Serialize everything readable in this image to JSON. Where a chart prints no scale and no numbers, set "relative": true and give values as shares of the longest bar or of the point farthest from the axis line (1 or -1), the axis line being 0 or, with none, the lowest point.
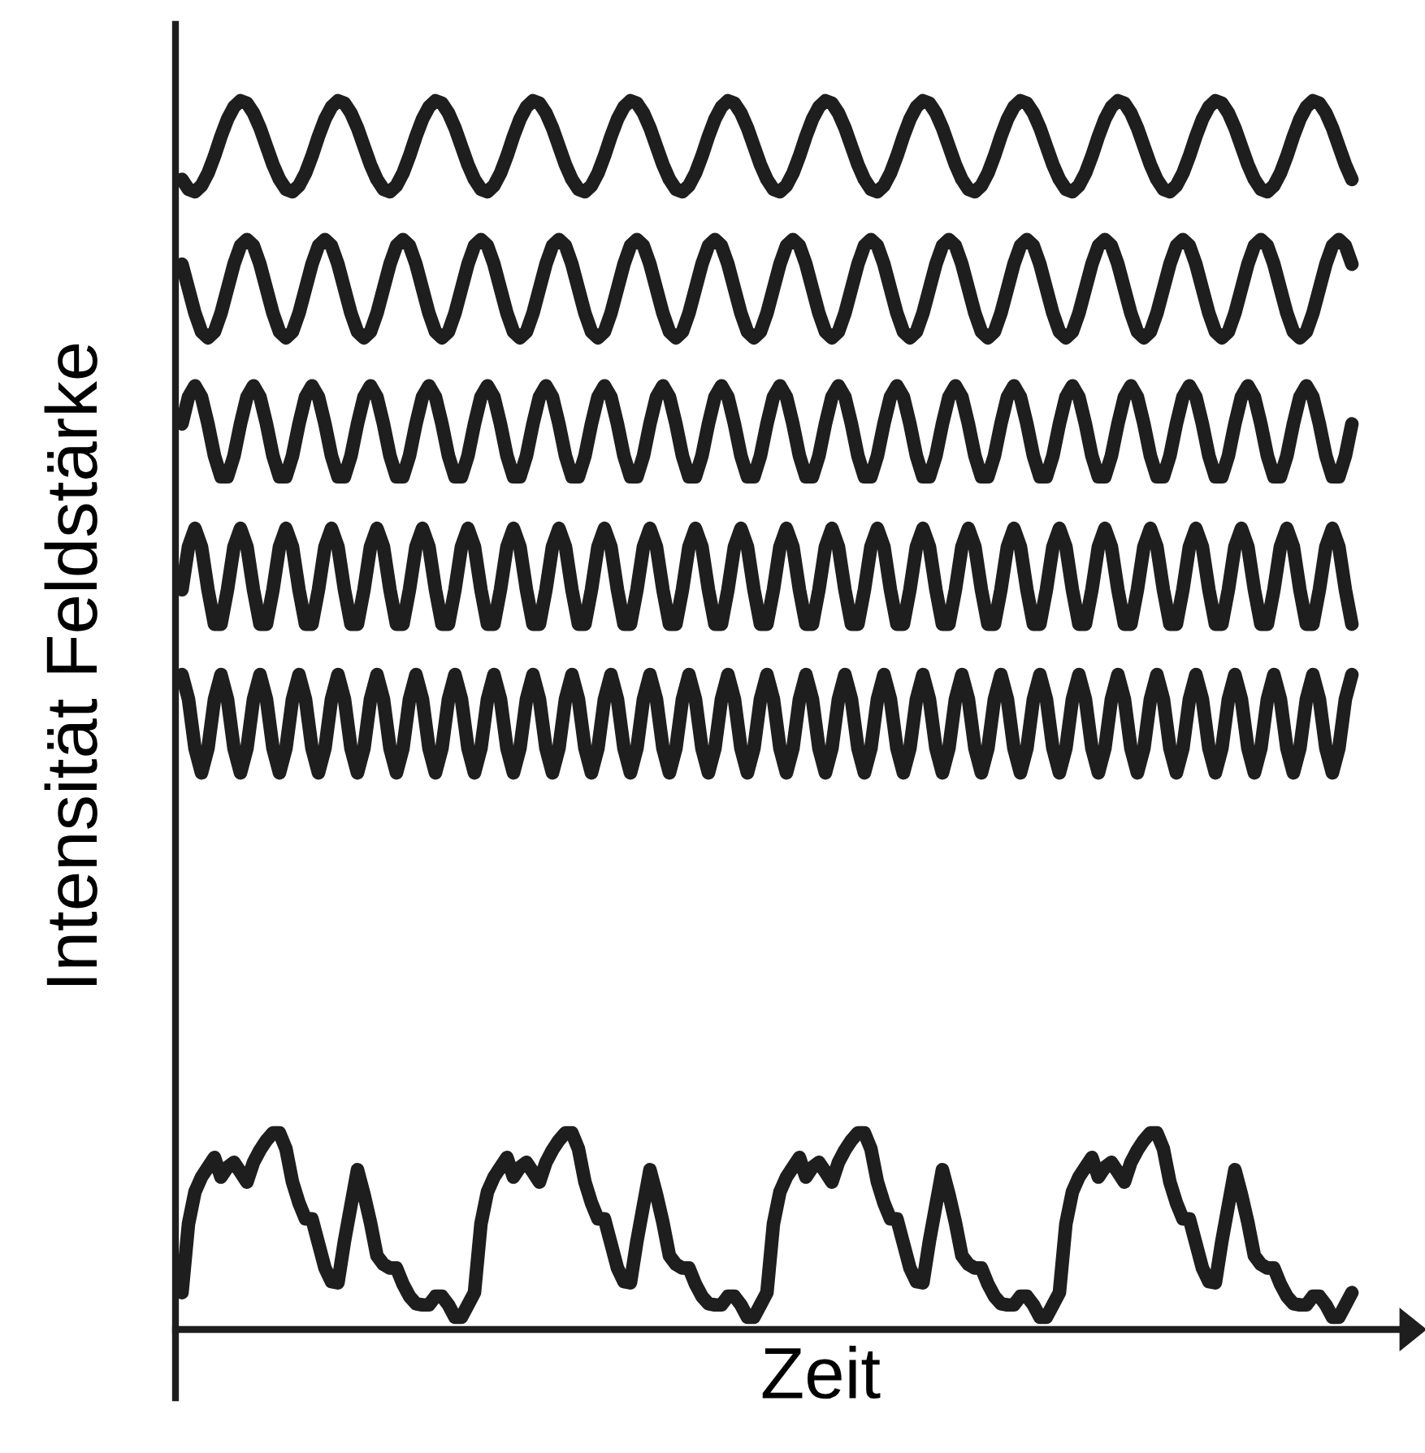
{
  "chart_data": {
    "type": "line",
    "relative": true,
    "xlabel": "Zeit",
    "ylabel": "Intensität Feldstärke",
    "categories": [
      null,
      null,
      null,
      null,
      null,
      null,
      null,
      null,
      null,
      null,
      null,
      null,
      null,
      null,
      null,
      null,
      null,
      null,
      null,
      null,
      null,
      null,
      null,
      null,
      null,
      null,
      null,
      null,
      null,
      null,
      null,
      null,
      null,
      null,
      null,
      null,
      null,
      null,
      null,
      null,
      null,
      null,
      null,
      null,
      null,
      null,
      null,
      null,
      null,
      null,
      null,
      null,
      null,
      null,
      null,
      null,
      null,
      null,
      null,
      null,
      null,
      null,
      null,
      null,
      null,
      null,
      null,
      null,
      null,
      null,
      null,
      null,
      null,
      null,
      null,
      null,
      null,
      null,
      null,
      null,
      null,
      null,
      null,
      null,
      null,
      null,
      null,
      null,
      null,
      null,
      null,
      null,
      null,
      null,
      null,
      null,
      null,
      null,
      null,
      null,
      null,
      null,
      null,
      null,
      null,
      null,
      null,
      null,
      null,
      null,
      null,
      null,
      null,
      null,
      null,
      null,
      null,
      null,
      null,
      null,
      null,
      null,
      null,
      null,
      null,
      null,
      null,
      null,
      null,
      null,
      null,
      null,
      null,
      null,
      null,
      null,
      null,
      null,
      null,
      null,
      null,
      null,
      null,
      null,
      null,
      null,
      null,
      null,
      null,
      null,
      null,
      null,
      null,
      null,
      null,
      null,
      null,
      null,
      null,
      null,
      null,
      null,
      null,
      null,
      null,
      null,
      null,
      null,
      null,
      null,
      null,
      null,
      null,
      null,
      null,
      null,
      null,
      null,
      null,
      null,
      null
    ],
    "series": [
      {
        "color": "#1e1e1e",
        "values": [
          0.936,
          0.928,
          0.926,
          0.931,
          0.941,
          0.955,
          0.971,
          0.985,
          0.995,
          1.0,
          0.998,
          0.99,
          0.978,
          0.963,
          0.948,
          0.936,
          0.928,
          0.926,
          0.931,
          0.941,
          0.955,
          0.971,
          0.985,
          0.995,
          1.0,
          0.998,
          0.99,
          0.978,
          0.963,
          0.948,
          0.936,
          0.928,
          0.926,
          0.931,
          0.941,
          0.955,
          0.971,
          0.985,
          0.995,
          1.0,
          0.998,
          0.99,
          0.978,
          0.963,
          0.948,
          0.936,
          0.928,
          0.926,
          0.931,
          0.941,
          0.955,
          0.971,
          0.985,
          0.995,
          1.0,
          0.998,
          0.99,
          0.978,
          0.963,
          0.948,
          0.936,
          0.928,
          0.926,
          0.931,
          0.941,
          0.955,
          0.971,
          0.985,
          0.995,
          1.0,
          0.998,
          0.99,
          0.978,
          0.963,
          0.948,
          0.936,
          0.928,
          0.926,
          0.931,
          0.941,
          0.955,
          0.971,
          0.985,
          0.995,
          1.0,
          0.998,
          0.99,
          0.978,
          0.963,
          0.948,
          0.936,
          0.928,
          0.926,
          0.931,
          0.941,
          0.955,
          0.971,
          0.985,
          0.995,
          1.0,
          0.998,
          0.99,
          0.978,
          0.963,
          0.948,
          0.936,
          0.928,
          0.926,
          0.931,
          0.941,
          0.955,
          0.971,
          0.985,
          0.995,
          1.0,
          0.998,
          0.99,
          0.978,
          0.963,
          0.948,
          0.936,
          0.928,
          0.926,
          0.931,
          0.941,
          0.955,
          0.971,
          0.985,
          0.995,
          1.0,
          0.998,
          0.99,
          0.978,
          0.963,
          0.948,
          0.936,
          0.928,
          0.926,
          0.931,
          0.941,
          0.955,
          0.971,
          0.985,
          0.995,
          1.0,
          0.998,
          0.99,
          0.978,
          0.963,
          0.948,
          0.936,
          0.928,
          0.926,
          0.931,
          0.941,
          0.955,
          0.971,
          0.985,
          0.995,
          1.0,
          0.998,
          0.99,
          0.978,
          0.963,
          0.948,
          0.936,
          0.928,
          0.926,
          0.931,
          0.941,
          0.955,
          0.971,
          0.985,
          0.995,
          1.0,
          0.998,
          0.99,
          0.978,
          0.963,
          0.948,
          0.936
        ]
      },
      {
        "color": "#1e1e1e",
        "values": [
          0.867,
          0.847,
          0.827,
          0.812,
          0.807,
          0.812,
          0.827,
          0.847,
          0.867,
          0.882,
          0.887,
          0.882,
          0.867,
          0.847,
          0.827,
          0.812,
          0.807,
          0.812,
          0.827,
          0.847,
          0.867,
          0.882,
          0.887,
          0.882,
          0.867,
          0.847,
          0.827,
          0.812,
          0.807,
          0.812,
          0.827,
          0.847,
          0.867,
          0.882,
          0.887,
          0.882,
          0.867,
          0.847,
          0.827,
          0.812,
          0.807,
          0.812,
          0.827,
          0.847,
          0.867,
          0.882,
          0.887,
          0.882,
          0.867,
          0.847,
          0.827,
          0.812,
          0.807,
          0.812,
          0.827,
          0.847,
          0.867,
          0.882,
          0.887,
          0.882,
          0.867,
          0.847,
          0.827,
          0.812,
          0.807,
          0.812,
          0.827,
          0.847,
          0.867,
          0.882,
          0.887,
          0.882,
          0.867,
          0.847,
          0.827,
          0.812,
          0.807,
          0.812,
          0.827,
          0.847,
          0.867,
          0.882,
          0.887,
          0.882,
          0.867,
          0.847,
          0.827,
          0.812,
          0.807,
          0.812,
          0.827,
          0.847,
          0.867,
          0.882,
          0.887,
          0.882,
          0.867,
          0.847,
          0.827,
          0.812,
          0.807,
          0.812,
          0.827,
          0.847,
          0.867,
          0.882,
          0.887,
          0.882,
          0.867,
          0.847,
          0.827,
          0.812,
          0.807,
          0.812,
          0.827,
          0.847,
          0.867,
          0.882,
          0.887,
          0.882,
          0.867,
          0.847,
          0.827,
          0.812,
          0.807,
          0.812,
          0.827,
          0.847,
          0.867,
          0.882,
          0.887,
          0.882,
          0.867,
          0.847,
          0.827,
          0.812,
          0.807,
          0.812,
          0.827,
          0.847,
          0.867,
          0.882,
          0.887,
          0.882,
          0.867,
          0.847,
          0.827,
          0.812,
          0.807,
          0.812,
          0.827,
          0.847,
          0.867,
          0.882,
          0.887,
          0.882,
          0.867,
          0.847,
          0.827,
          0.812,
          0.807,
          0.812,
          0.827,
          0.847,
          0.867,
          0.882,
          0.887,
          0.882,
          0.867,
          0.847,
          0.827,
          0.812,
          0.807,
          0.812,
          0.827,
          0.847,
          0.867,
          0.882,
          0.887,
          0.882,
          0.867
        ]
      },
      {
        "color": "#1e1e1e",
        "values": [
          0.737,
          0.759,
          0.768,
          0.759,
          0.737,
          0.711,
          0.694,
          0.694,
          0.711,
          0.737,
          0.759,
          0.768,
          0.759,
          0.737,
          0.711,
          0.694,
          0.694,
          0.711,
          0.737,
          0.759,
          0.768,
          0.759,
          0.737,
          0.711,
          0.694,
          0.694,
          0.711,
          0.737,
          0.759,
          0.768,
          0.759,
          0.737,
          0.711,
          0.694,
          0.694,
          0.711,
          0.737,
          0.759,
          0.768,
          0.759,
          0.737,
          0.711,
          0.694,
          0.694,
          0.711,
          0.737,
          0.759,
          0.768,
          0.759,
          0.737,
          0.711,
          0.694,
          0.694,
          0.711,
          0.737,
          0.759,
          0.768,
          0.759,
          0.737,
          0.711,
          0.694,
          0.694,
          0.711,
          0.737,
          0.759,
          0.768,
          0.759,
          0.737,
          0.711,
          0.694,
          0.694,
          0.711,
          0.737,
          0.759,
          0.768,
          0.759,
          0.737,
          0.711,
          0.694,
          0.694,
          0.711,
          0.737,
          0.759,
          0.768,
          0.759,
          0.737,
          0.711,
          0.694,
          0.694,
          0.711,
          0.737,
          0.759,
          0.768,
          0.759,
          0.737,
          0.711,
          0.694,
          0.694,
          0.711,
          0.737,
          0.759,
          0.768,
          0.759,
          0.737,
          0.711,
          0.694,
          0.694,
          0.711,
          0.737,
          0.759,
          0.768,
          0.759,
          0.737,
          0.711,
          0.694,
          0.694,
          0.711,
          0.737,
          0.759,
          0.768,
          0.759,
          0.737,
          0.711,
          0.694,
          0.694,
          0.711,
          0.737,
          0.759,
          0.768,
          0.759,
          0.737,
          0.711,
          0.694,
          0.694,
          0.711,
          0.737,
          0.759,
          0.768,
          0.759,
          0.737,
          0.711,
          0.694,
          0.694,
          0.711,
          0.737,
          0.759,
          0.768,
          0.759,
          0.737,
          0.711,
          0.694,
          0.694,
          0.711,
          0.737,
          0.759,
          0.768,
          0.759,
          0.737,
          0.711,
          0.694,
          0.694,
          0.711,
          0.737,
          0.759,
          0.768,
          0.759,
          0.737,
          0.711,
          0.694,
          0.694,
          0.711,
          0.737,
          0.759,
          0.768,
          0.759,
          0.737,
          0.711,
          0.694,
          0.694,
          0.711,
          0.737
        ]
      },
      {
        "color": "#1e1e1e",
        "values": [
          0.602,
          0.637,
          0.652,
          0.637,
          0.602,
          0.574,
          0.574,
          0.602,
          0.637,
          0.652,
          0.637,
          0.602,
          0.574,
          0.574,
          0.602,
          0.637,
          0.652,
          0.637,
          0.602,
          0.574,
          0.574,
          0.602,
          0.637,
          0.652,
          0.637,
          0.602,
          0.574,
          0.574,
          0.602,
          0.637,
          0.652,
          0.637,
          0.602,
          0.574,
          0.574,
          0.602,
          0.637,
          0.652,
          0.637,
          0.602,
          0.574,
          0.574,
          0.602,
          0.637,
          0.652,
          0.637,
          0.602,
          0.574,
          0.574,
          0.602,
          0.637,
          0.652,
          0.637,
          0.602,
          0.574,
          0.574,
          0.602,
          0.637,
          0.652,
          0.637,
          0.602,
          0.574,
          0.574,
          0.602,
          0.637,
          0.652,
          0.637,
          0.602,
          0.574,
          0.574,
          0.602,
          0.637,
          0.652,
          0.637,
          0.602,
          0.574,
          0.574,
          0.602,
          0.637,
          0.652,
          0.637,
          0.602,
          0.574,
          0.574,
          0.602,
          0.637,
          0.652,
          0.637,
          0.602,
          0.574,
          0.574,
          0.602,
          0.637,
          0.652,
          0.637,
          0.602,
          0.574,
          0.574,
          0.602,
          0.637,
          0.652,
          0.637,
          0.602,
          0.574,
          0.574,
          0.602,
          0.637,
          0.652,
          0.637,
          0.602,
          0.574,
          0.574,
          0.602,
          0.637,
          0.652,
          0.637,
          0.602,
          0.574,
          0.574,
          0.602,
          0.637,
          0.652,
          0.637,
          0.602,
          0.574,
          0.574,
          0.602,
          0.637,
          0.652,
          0.637,
          0.602,
          0.574,
          0.574,
          0.602,
          0.637,
          0.652,
          0.637,
          0.602,
          0.574,
          0.574,
          0.602,
          0.637,
          0.652,
          0.637,
          0.602,
          0.574,
          0.574,
          0.602,
          0.637,
          0.652,
          0.637,
          0.602,
          0.574,
          0.574,
          0.602,
          0.637,
          0.652,
          0.637,
          0.602,
          0.574,
          0.574,
          0.602,
          0.637,
          0.652,
          0.637,
          0.602,
          0.574,
          0.574,
          0.602,
          0.637,
          0.652,
          0.637,
          0.602,
          0.574,
          0.574,
          0.602,
          0.637,
          0.652,
          0.637,
          0.602,
          0.574
        ]
      },
      {
        "color": "#1e1e1e",
        "values": [
          0.533,
          0.513,
          0.473,
          0.453,
          0.473,
          0.513,
          0.533,
          0.513,
          0.473,
          0.453,
          0.473,
          0.513,
          0.533,
          0.513,
          0.473,
          0.453,
          0.473,
          0.513,
          0.533,
          0.513,
          0.473,
          0.453,
          0.473,
          0.513,
          0.533,
          0.513,
          0.473,
          0.453,
          0.473,
          0.513,
          0.533,
          0.513,
          0.473,
          0.453,
          0.473,
          0.513,
          0.533,
          0.513,
          0.473,
          0.453,
          0.473,
          0.513,
          0.533,
          0.513,
          0.473,
          0.453,
          0.473,
          0.513,
          0.533,
          0.513,
          0.473,
          0.453,
          0.473,
          0.513,
          0.533,
          0.513,
          0.473,
          0.453,
          0.473,
          0.513,
          0.533,
          0.513,
          0.473,
          0.453,
          0.473,
          0.513,
          0.533,
          0.513,
          0.473,
          0.453,
          0.473,
          0.513,
          0.533,
          0.513,
          0.473,
          0.453,
          0.473,
          0.513,
          0.533,
          0.513,
          0.473,
          0.453,
          0.473,
          0.513,
          0.533,
          0.513,
          0.473,
          0.453,
          0.473,
          0.513,
          0.533,
          0.513,
          0.473,
          0.453,
          0.473,
          0.513,
          0.533,
          0.513,
          0.473,
          0.453,
          0.473,
          0.513,
          0.533,
          0.513,
          0.473,
          0.453,
          0.473,
          0.513,
          0.533,
          0.513,
          0.473,
          0.453,
          0.473,
          0.513,
          0.533,
          0.513,
          0.473,
          0.453,
          0.473,
          0.513,
          0.533,
          0.513,
          0.473,
          0.453,
          0.473,
          0.513,
          0.533,
          0.513,
          0.473,
          0.453,
          0.473,
          0.513,
          0.533,
          0.513,
          0.473,
          0.453,
          0.473,
          0.513,
          0.533,
          0.513,
          0.473,
          0.453,
          0.473,
          0.513,
          0.533,
          0.513,
          0.473,
          0.453,
          0.473,
          0.513,
          0.533,
          0.513,
          0.473,
          0.453,
          0.473,
          0.513,
          0.533,
          0.513,
          0.473,
          0.453,
          0.473,
          0.513,
          0.533,
          0.513,
          0.473,
          0.453,
          0.473,
          0.513,
          0.533,
          0.513,
          0.473,
          0.453,
          0.473,
          0.513,
          0.533,
          0.513,
          0.473,
          0.453,
          0.473,
          0.513,
          0.533
        ]
      },
      {
        "color": "#1e1e1e",
        "values": [
          0.03,
          0.086,
          0.112,
          0.124,
          0.132,
          0.14,
          0.124,
          0.132,
          0.136,
          0.128,
          0.12,
          0.136,
          0.146,
          0.154,
          0.16,
          0.16,
          0.147,
          0.12,
          0.103,
          0.09,
          0.09,
          0.07,
          0.05,
          0.039,
          0.038,
          0.072,
          0.101,
          0.13,
          0.11,
          0.087,
          0.06,
          0.053,
          0.05,
          0.05,
          0.037,
          0.027,
          0.021,
          0.02,
          0.02,
          0.027,
          0.027,
          0.02,
          0.01,
          0.01,
          0.02,
          0.03,
          0.086,
          0.112,
          0.124,
          0.132,
          0.14,
          0.124,
          0.132,
          0.136,
          0.128,
          0.12,
          0.136,
          0.146,
          0.154,
          0.16,
          0.16,
          0.147,
          0.12,
          0.103,
          0.09,
          0.09,
          0.07,
          0.05,
          0.039,
          0.038,
          0.072,
          0.101,
          0.13,
          0.11,
          0.087,
          0.06,
          0.053,
          0.05,
          0.05,
          0.037,
          0.027,
          0.021,
          0.02,
          0.02,
          0.027,
          0.027,
          0.02,
          0.01,
          0.01,
          0.02,
          0.03,
          0.086,
          0.112,
          0.124,
          0.132,
          0.14,
          0.124,
          0.132,
          0.136,
          0.128,
          0.12,
          0.136,
          0.146,
          0.154,
          0.16,
          0.16,
          0.147,
          0.12,
          0.103,
          0.09,
          0.09,
          0.07,
          0.05,
          0.039,
          0.038,
          0.072,
          0.101,
          0.13,
          0.11,
          0.087,
          0.06,
          0.053,
          0.05,
          0.05,
          0.037,
          0.027,
          0.021,
          0.02,
          0.02,
          0.027,
          0.027,
          0.02,
          0.01,
          0.01,
          0.02,
          0.03,
          0.086,
          0.112,
          0.124,
          0.132,
          0.14,
          0.124,
          0.132,
          0.136,
          0.128,
          0.12,
          0.136,
          0.146,
          0.154,
          0.16,
          0.16,
          0.147,
          0.12,
          0.103,
          0.09,
          0.09,
          0.07,
          0.05,
          0.039,
          0.038,
          0.072,
          0.101,
          0.13,
          0.11,
          0.087,
          0.06,
          0.053,
          0.05,
          0.05,
          0.037,
          0.027,
          0.021,
          0.02,
          0.02,
          0.027,
          0.027,
          0.02,
          0.01,
          0.01,
          0.02,
          0.03
        ]
      }
    ]
  }
}
